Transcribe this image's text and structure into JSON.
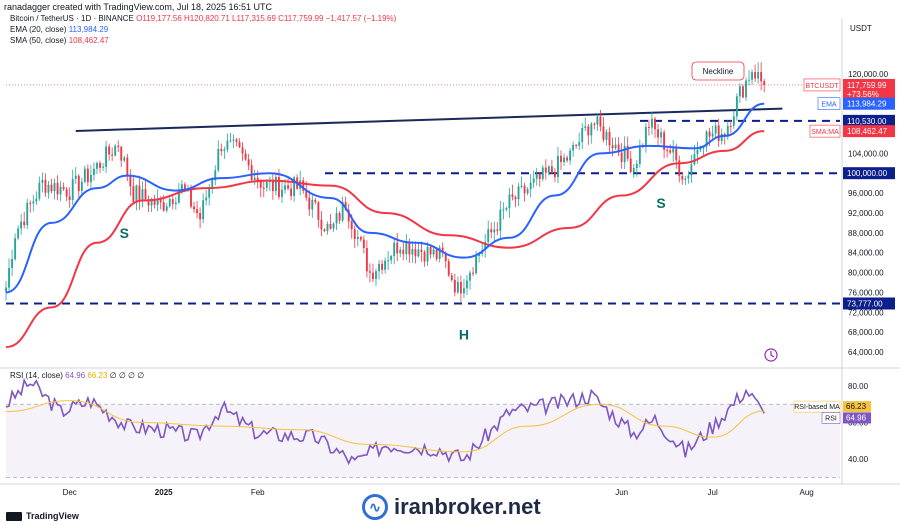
{
  "header": {
    "author_line": "ranadagger created with TradingView.com, Jul 18, 2025 16:51 UTC",
    "symbol_line": "Bitcoin / TetherUS · 1D · BINANCE",
    "ohlc": "O119,177.56  H120,820.71  L117,315.69  C117,759.99  −1,417.57 (−1.19%)",
    "ema_label": "EMA (20, close)",
    "ema_value": "113,984.29",
    "sma_label": "SMA (50, close)",
    "sma_value": "108,462.47"
  },
  "rsi_header": {
    "label": "RSI (14, close)",
    "value": "64.96",
    "ma_value": "66.23",
    "extra": "∅ ∅ ∅ ∅"
  },
  "footer": {
    "tradingview": "TradingView",
    "watermark": "iranbroker.net"
  },
  "colors": {
    "up": "#26a69a",
    "down": "#f23645",
    "ema": "#2962ff",
    "sma": "#f23645",
    "rsi": "#7e57c2",
    "rsi_ma": "#f5c242",
    "level": "#0d1f8c",
    "neckline": "#1a2a5c"
  },
  "chart_data": [
    {
      "type": "candlestick",
      "title": "",
      "axis_currency": "USDT",
      "x_range": [
        "2024-11-10",
        "2025-08-12"
      ],
      "ylim": [
        62000,
        126000
      ],
      "y_ticks": [
        64000,
        68000,
        72000,
        76000,
        80000,
        84000,
        88000,
        92000,
        96000,
        100000,
        104000,
        120000
      ],
      "y_tick_labels": [
        "64,000.00",
        "68,000.00",
        "72,000.00",
        "76,000.00",
        "80,000.00",
        "84,000.00",
        "88,000.00",
        "92,000.00",
        "96,000.00",
        "100,000.00",
        "104,000.00",
        "120,000.00"
      ],
      "x_ticks": [
        {
          "label": "Dec",
          "date": "2024-12-01"
        },
        {
          "label": "2025",
          "date": "2025-01-01"
        },
        {
          "label": "Feb",
          "date": "2025-02-01"
        },
        {
          "label": "Jun",
          "date": "2025-06-01"
        },
        {
          "label": "Jul",
          "date": "2025-07-01"
        },
        {
          "label": "Aug",
          "date": "2025-08-01"
        }
      ],
      "price_path": [
        [
          "2024-11-10",
          77000
        ],
        [
          "2024-11-13",
          88000
        ],
        [
          "2024-11-22",
          98000
        ],
        [
          "2024-12-01",
          96500
        ],
        [
          "2024-12-08",
          100000
        ],
        [
          "2024-12-17",
          106000
        ],
        [
          "2024-12-22",
          96000
        ],
        [
          "2024-12-31",
          93500
        ],
        [
          "2025-01-07",
          97000
        ],
        [
          "2025-01-13",
          91000
        ],
        [
          "2025-01-20",
          106000
        ],
        [
          "2025-01-25",
          104500
        ],
        [
          "2025-02-03",
          97500
        ],
        [
          "2025-02-15",
          97000
        ],
        [
          "2025-02-25",
          88000
        ],
        [
          "2025-03-02",
          94000
        ],
        [
          "2025-03-10",
          80000
        ],
        [
          "2025-03-20",
          86000
        ],
        [
          "2025-04-03",
          83000
        ],
        [
          "2025-04-08",
          76500
        ],
        [
          "2025-04-15",
          84000
        ],
        [
          "2025-04-25",
          94000
        ],
        [
          "2025-05-08",
          100000
        ],
        [
          "2025-05-15",
          103500
        ],
        [
          "2025-05-22",
          110500
        ],
        [
          "2025-05-28",
          107000
        ],
        [
          "2025-06-05",
          101500
        ],
        [
          "2025-06-10",
          110000
        ],
        [
          "2025-06-17",
          104500
        ],
        [
          "2025-06-22",
          99000
        ],
        [
          "2025-06-27",
          107000
        ],
        [
          "2025-07-05",
          108500
        ],
        [
          "2025-07-10",
          116000
        ],
        [
          "2025-07-14",
          121000
        ],
        [
          "2025-07-18",
          117760
        ]
      ],
      "ema20": [
        [
          "2024-11-10",
          76000
        ],
        [
          "2024-11-25",
          90000
        ],
        [
          "2024-12-10",
          97000
        ],
        [
          "2024-12-20",
          99500
        ],
        [
          "2025-01-05",
          96500
        ],
        [
          "2025-01-20",
          99000
        ],
        [
          "2025-02-05",
          100000
        ],
        [
          "2025-02-25",
          95000
        ],
        [
          "2025-03-10",
          88000
        ],
        [
          "2025-03-25",
          86000
        ],
        [
          "2025-04-10",
          83000
        ],
        [
          "2025-04-25",
          87000
        ],
        [
          "2025-05-10",
          95500
        ],
        [
          "2025-05-25",
          104000
        ],
        [
          "2025-06-10",
          105500
        ],
        [
          "2025-06-25",
          105000
        ],
        [
          "2025-07-05",
          107500
        ],
        [
          "2025-07-18",
          113984
        ]
      ],
      "sma50": [
        [
          "2024-11-10",
          65000
        ],
        [
          "2024-11-25",
          73000
        ],
        [
          "2024-12-10",
          86000
        ],
        [
          "2024-12-25",
          94500
        ],
        [
          "2025-01-15",
          97000
        ],
        [
          "2025-02-05",
          98500
        ],
        [
          "2025-02-25",
          97500
        ],
        [
          "2025-03-15",
          92000
        ],
        [
          "2025-04-05",
          87500
        ],
        [
          "2025-04-25",
          85000
        ],
        [
          "2025-05-15",
          89000
        ],
        [
          "2025-06-01",
          95500
        ],
        [
          "2025-06-20",
          102000
        ],
        [
          "2025-07-05",
          104500
        ],
        [
          "2025-07-18",
          108462
        ]
      ],
      "levels": [
        {
          "value": 110530,
          "label": "110,530.00"
        },
        {
          "value": 100000,
          "label": "100,000.00"
        },
        {
          "value": 73777,
          "label": "73,777.00"
        }
      ],
      "neckline": {
        "start": [
          "2024-12-03",
          108500
        ],
        "end": [
          "2025-07-24",
          113000
        ],
        "label": "Neckline"
      },
      "pattern_labels": [
        {
          "text": "S",
          "date": "2024-12-19",
          "price": 87000
        },
        {
          "text": "H",
          "date": "2025-04-10",
          "price": 66500
        },
        {
          "text": "S",
          "date": "2025-06-14",
          "price": 93000
        }
      ],
      "price_badges": [
        {
          "label": "BTCUSDT",
          "lines": [
            "117,759.99",
            "+73.56%",
            "07:08:50"
          ],
          "value": 117760
        },
        {
          "label": "EMA",
          "lines": [
            "113,984.29"
          ],
          "value": 113984
        },
        {
          "label": "SMA:MA",
          "lines": [
            "108,462.47"
          ],
          "value": 108462
        }
      ]
    },
    {
      "type": "line",
      "title": "",
      "ylim": [
        34,
        86
      ],
      "y_ticks": [
        40,
        60,
        80
      ],
      "y_tick_labels": [
        "40.00",
        "60.00",
        "80.00"
      ],
      "bands": [
        30,
        70
      ],
      "series": [
        {
          "name": "RSI",
          "points": [
            [
              "2024-11-10",
              70
            ],
            [
              "2024-11-18",
              82
            ],
            [
              "2024-11-28",
              66
            ],
            [
              "2024-12-08",
              72
            ],
            [
              "2024-12-20",
              58
            ],
            [
              "2025-01-01",
              56
            ],
            [
              "2025-01-12",
              52
            ],
            [
              "2025-01-20",
              68
            ],
            [
              "2025-02-01",
              54
            ],
            [
              "2025-02-20",
              52
            ],
            [
              "2025-03-05",
              38
            ],
            [
              "2025-03-15",
              48
            ],
            [
              "2025-04-01",
              46
            ],
            [
              "2025-04-10",
              40
            ],
            [
              "2025-04-25",
              66
            ],
            [
              "2025-05-10",
              70
            ],
            [
              "2025-05-22",
              75
            ],
            [
              "2025-06-05",
              54
            ],
            [
              "2025-06-12",
              62
            ],
            [
              "2025-06-22",
              44
            ],
            [
              "2025-07-01",
              58
            ],
            [
              "2025-07-12",
              78
            ],
            [
              "2025-07-18",
              64.96
            ]
          ]
        },
        {
          "name": "RSI-based MA",
          "points": [
            [
              "2024-11-10",
              66
            ],
            [
              "2024-12-01",
              72
            ],
            [
              "2024-12-25",
              60
            ],
            [
              "2025-01-20",
              58
            ],
            [
              "2025-02-15",
              56
            ],
            [
              "2025-03-10",
              48
            ],
            [
              "2025-04-10",
              44
            ],
            [
              "2025-05-01",
              58
            ],
            [
              "2025-05-25",
              70
            ],
            [
              "2025-06-15",
              58
            ],
            [
              "2025-07-01",
              52
            ],
            [
              "2025-07-18",
              66.23
            ]
          ]
        }
      ],
      "badges": [
        {
          "label": "RSI-based MA",
          "value_text": "66.23",
          "value": 66.23
        },
        {
          "label": "RSI",
          "value_text": "64.96",
          "value": 64.96
        }
      ]
    }
  ]
}
